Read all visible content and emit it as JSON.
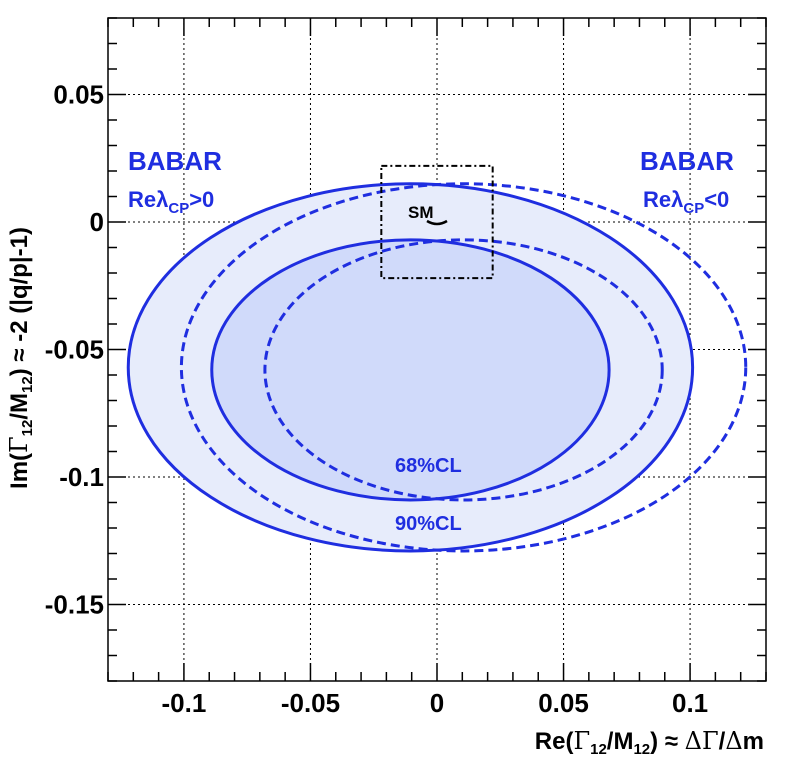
{
  "chart_data": {
    "type": "contour",
    "xlabel": "Re(Γ12/M12) ≈ ΔΓ/Δm",
    "ylabel": "Im(Γ12/M12) ≈ -2 (|q/p|-1)",
    "xlim": [
      -0.13,
      0.13
    ],
    "ylim": [
      -0.18,
      0.08
    ],
    "x_ticks": [
      "-0.1",
      "-0.05",
      "0",
      "0.05",
      "0.1"
    ],
    "y_ticks": [
      "0.05",
      "0",
      "-0.05",
      "-0.1",
      "-0.15"
    ],
    "grid": true,
    "colors": {
      "contour": "#1f2ee0",
      "fill_90": "#e7ecfb",
      "fill_68": "#d0dafa"
    },
    "labels": {
      "left_title": "BABAR",
      "left_sub": "Reλ",
      "left_sub_index": "CP",
      "left_sub_rel": ">0",
      "right_title": "BABAR",
      "right_sub": "Reλ",
      "right_sub_index": "CP",
      "right_sub_rel": "<0",
      "cl68": "68%CL",
      "cl90": "90%CL",
      "sm": "SM"
    },
    "series": [
      {
        "cl": "90%CL",
        "solution": "Reλ_CP>0",
        "style": "solid",
        "filled": true,
        "x_range": [
          -0.122,
          0.101
        ],
        "y_range": [
          -0.129,
          0.015
        ]
      },
      {
        "cl": "68%CL",
        "solution": "Reλ_CP>0",
        "style": "solid",
        "filled": true,
        "x_range": [
          -0.089,
          0.068
        ],
        "y_range": [
          -0.109,
          -0.007
        ]
      },
      {
        "cl": "90%CL",
        "solution": "Reλ_CP<0",
        "style": "dashed",
        "filled": false,
        "x_range": [
          -0.101,
          0.122
        ],
        "y_range": [
          -0.129,
          0.015
        ]
      },
      {
        "cl": "68%CL",
        "solution": "Reλ_CP<0",
        "style": "dashed",
        "filled": false,
        "x_range": [
          -0.068,
          0.089
        ],
        "y_range": [
          -0.109,
          -0.007
        ]
      }
    ],
    "sm_box": {
      "x_range": [
        -0.022,
        0.022
      ],
      "y_range": [
        -0.022,
        0.022
      ]
    },
    "sm_point": {
      "x": 0,
      "y": 0
    }
  }
}
